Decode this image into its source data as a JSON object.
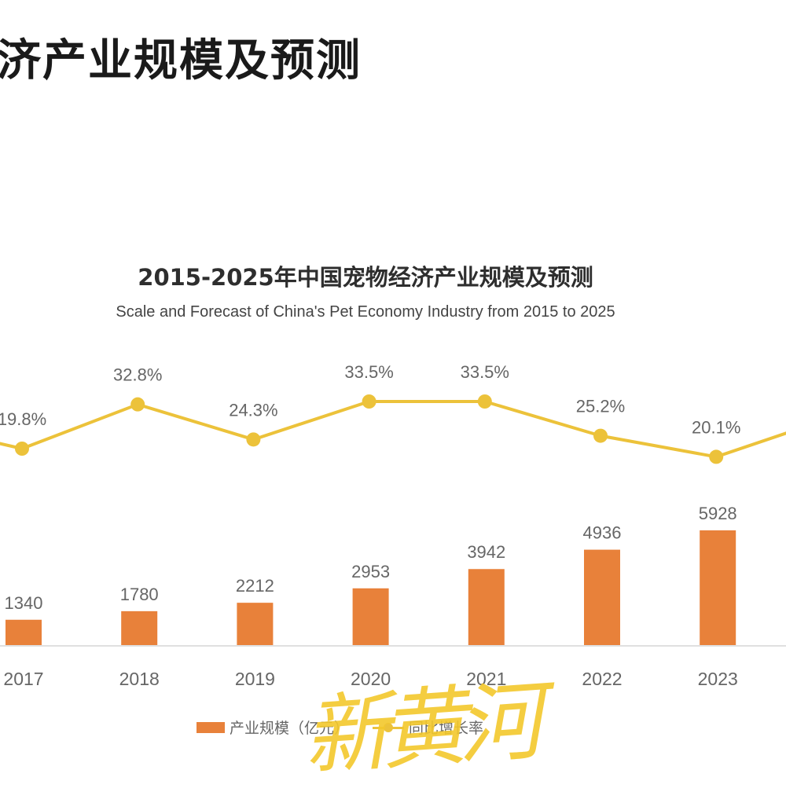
{
  "page": {
    "heading": "济产业规模及预测",
    "watermark": "新黄河"
  },
  "colors": {
    "bar": "#e8813a",
    "line": "#ecc23a",
    "label_text": "#666666",
    "axis": "#e0e0e0"
  },
  "chart_data": {
    "type": "bar+line",
    "title": "2015-2025年中国宠物经济产业规模及预测",
    "subtitle": "Scale and Forecast of China's Pet Economy Industry from 2015 to 2025",
    "categories": [
      "2017",
      "2018",
      "2019",
      "2020",
      "2021",
      "2022",
      "2023"
    ],
    "series": [
      {
        "name": "产业规模（亿元）",
        "type": "bar",
        "values": [
          1340,
          1780,
          2212,
          2953,
          3942,
          4936,
          5928
        ],
        "labels": [
          "1340",
          "1780",
          "2212",
          "2953",
          "3942",
          "4936",
          "5928"
        ]
      },
      {
        "name": "同比增长率",
        "type": "line",
        "values": [
          19.8,
          32.8,
          24.3,
          33.5,
          33.5,
          25.2,
          20.1
        ],
        "labels": [
          "19.8%",
          "32.8%",
          "24.3%",
          "33.5%",
          "33.5%",
          "25.2%",
          "20.1%"
        ]
      }
    ],
    "legend": [
      "产业规模（亿元）",
      "同比增长率"
    ],
    "legend_position": "bottom",
    "grid": false,
    "xlabel": "",
    "ylabel": ""
  },
  "legend": {
    "bar_label": "产业规模（亿元）",
    "line_label": "同比增长率"
  }
}
